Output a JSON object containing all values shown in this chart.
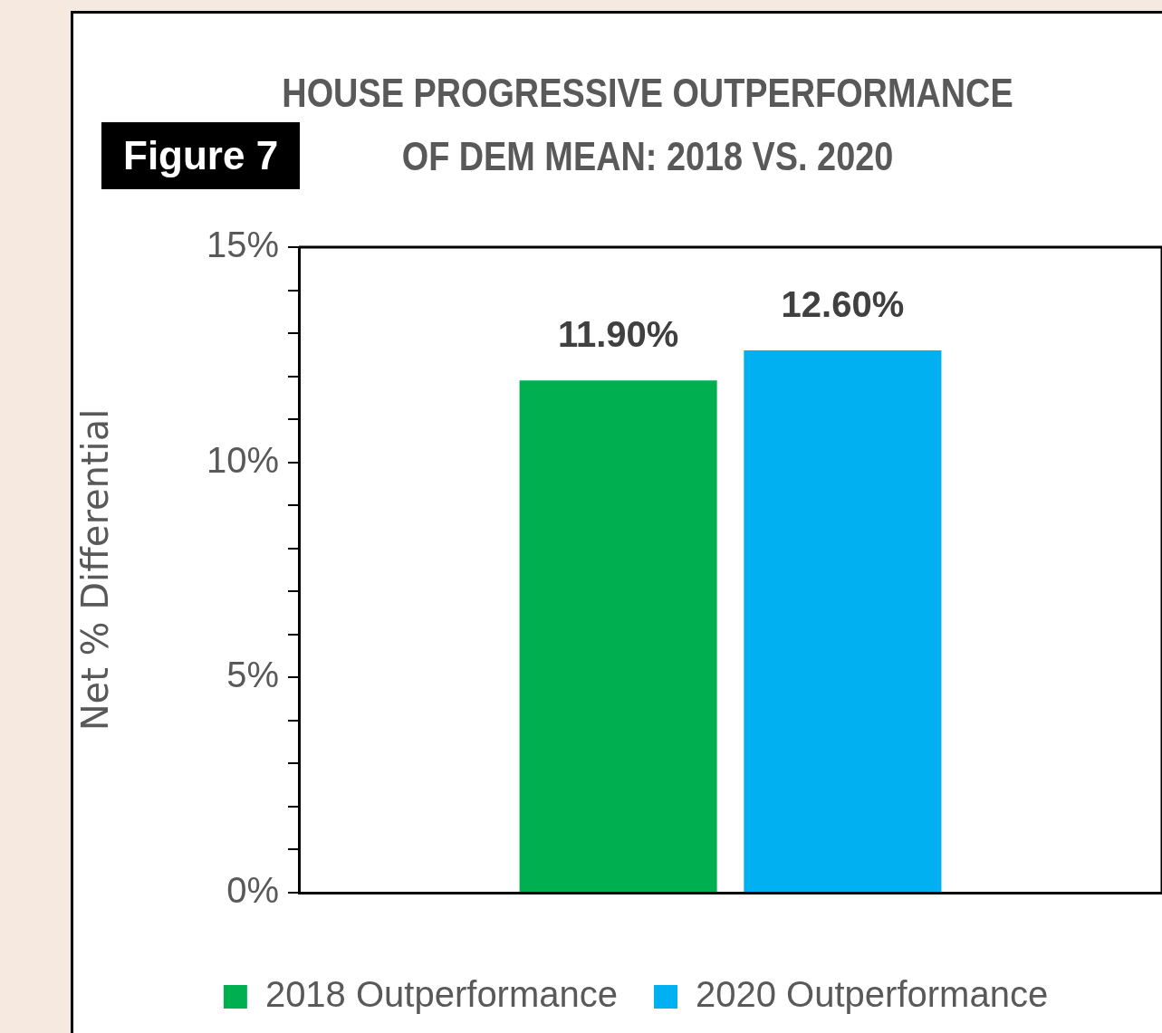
{
  "chart_data": {
    "type": "bar",
    "title": "HOUSE PROGRESSIVE OUTPERFORMANCE OF DEM MEAN: 2018 VS. 2020",
    "annotations": [
      "Figure 7"
    ],
    "ylabel": "Net % Differential",
    "categories": [
      null
    ],
    "series": [
      {
        "name": "2018 Outperformance",
        "color": "#00b050",
        "values": [
          11.9
        ],
        "value_labels": [
          "11.90%"
        ]
      },
      {
        "name": "2020 Outperformance",
        "color": "#00b0f0",
        "values": [
          12.6
        ],
        "value_labels": [
          "12.60%"
        ]
      }
    ],
    "ylim": [
      0,
      15
    ],
    "yticks": [
      {
        "value": 0,
        "label": "0%"
      },
      {
        "value": 1,
        "label": null
      },
      {
        "value": 2,
        "label": null
      },
      {
        "value": 3,
        "label": null
      },
      {
        "value": 4,
        "label": null
      },
      {
        "value": 5,
        "label": "5%"
      },
      {
        "value": 6,
        "label": null
      },
      {
        "value": 7,
        "label": null
      },
      {
        "value": 8,
        "label": null
      },
      {
        "value": 9,
        "label": null
      },
      {
        "value": 10,
        "label": "10%"
      },
      {
        "value": 11,
        "label": null
      },
      {
        "value": 12,
        "label": null
      },
      {
        "value": 13,
        "label": null
      },
      {
        "value": 14,
        "label": null
      },
      {
        "value": 15,
        "label": "15%"
      }
    ],
    "grid": false,
    "legend": "bottom"
  }
}
